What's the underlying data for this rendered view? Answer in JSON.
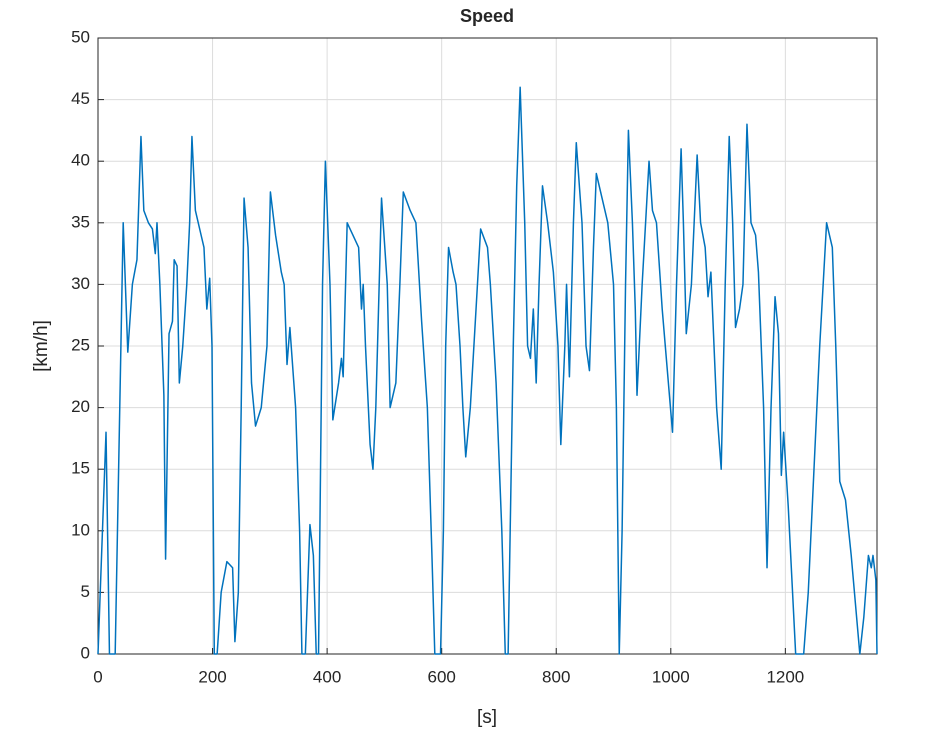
{
  "chart_data": {
    "type": "line",
    "title": "Speed",
    "x_label": "[s]",
    "y_label": "[km/h]",
    "x": [
      0,
      14,
      20,
      30,
      44,
      52,
      60,
      68,
      75,
      80,
      88,
      95,
      100,
      103,
      108,
      115,
      118,
      124,
      130,
      133,
      138,
      142,
      148,
      155,
      160,
      164,
      170,
      180,
      185,
      190,
      195,
      199,
      203,
      208,
      215,
      225,
      235,
      239,
      245,
      250,
      255,
      262,
      268,
      275,
      285,
      295,
      301,
      310,
      320,
      325,
      330,
      335,
      345,
      352,
      356,
      362,
      370,
      376,
      381,
      385,
      392,
      397,
      405,
      410,
      420,
      425,
      428,
      435,
      445,
      455,
      460,
      463,
      467,
      475,
      480,
      485,
      488,
      495,
      505,
      510,
      520,
      527,
      533,
      545,
      555,
      565,
      575,
      583,
      588,
      598,
      603,
      607,
      612,
      620,
      625,
      632,
      637,
      642,
      650,
      660,
      668,
      680,
      685,
      690,
      695,
      705,
      711,
      716,
      725,
      731,
      737,
      745,
      750,
      755,
      760,
      765,
      770,
      776,
      785,
      795,
      803,
      808,
      815,
      818,
      823,
      830,
      835,
      845,
      852,
      858,
      865,
      870,
      880,
      890,
      900,
      905,
      910,
      915,
      921,
      926,
      933,
      938,
      941,
      950,
      962,
      968,
      975,
      985,
      1003,
      1010,
      1018,
      1022,
      1027,
      1036,
      1046,
      1052,
      1060,
      1065,
      1070,
      1080,
      1088,
      1095,
      1102,
      1108,
      1113,
      1120,
      1126,
      1133,
      1140,
      1148,
      1153,
      1162,
      1168,
      1175,
      1182,
      1188,
      1193,
      1197,
      1205,
      1218,
      1232,
      1240,
      1250,
      1260,
      1272,
      1282,
      1288,
      1295,
      1305,
      1315,
      1330,
      1337,
      1345,
      1350,
      1353,
      1358,
      1360
    ],
    "values": [
      0,
      18,
      0,
      0,
      35,
      24.5,
      30,
      32,
      42,
      36,
      35,
      34.5,
      32.5,
      35,
      30,
      21,
      7.7,
      26,
      27,
      32,
      31.5,
      22,
      25,
      30,
      35,
      42,
      36,
      34,
      33,
      28,
      30.5,
      25,
      0,
      0,
      5,
      7.5,
      7,
      1,
      5,
      20,
      37,
      33,
      22,
      18.5,
      20,
      25,
      37.5,
      34,
      31,
      30,
      23.5,
      26.5,
      20,
      10,
      0,
      0,
      10.5,
      8,
      0,
      0,
      30,
      40,
      30,
      19,
      22,
      24,
      22.5,
      35,
      34,
      33,
      28,
      30,
      25,
      17,
      15,
      20,
      25,
      37,
      30,
      20,
      22,
      30,
      37.5,
      36,
      35,
      27,
      20,
      8,
      0,
      0,
      10,
      25,
      33,
      31,
      30,
      25,
      20,
      16,
      20,
      28,
      34.5,
      33,
      30,
      26,
      22,
      10,
      0,
      0,
      25,
      38,
      46,
      35,
      25,
      24,
      28,
      22,
      30,
      38,
      35,
      31,
      25,
      17,
      25,
      30,
      22.5,
      35,
      41.5,
      35,
      25,
      23,
      33,
      39,
      37,
      35,
      30,
      20,
      0,
      10,
      30,
      42.5,
      35,
      28,
      21,
      30,
      40,
      36,
      35,
      28,
      18,
      30,
      41,
      35,
      26,
      30,
      40.5,
      35,
      33,
      29,
      31,
      20,
      15,
      30,
      42,
      35,
      26.5,
      28,
      30,
      43,
      35,
      34,
      31,
      20,
      7,
      20,
      29,
      26,
      14.5,
      18,
      12,
      0,
      0,
      5,
      15,
      25,
      35,
      33,
      25,
      14,
      12.5,
      8,
      0,
      3,
      8,
      7,
      8,
      6,
      0
    ],
    "color": "#0072bd",
    "xlim": [
      0,
      1360
    ],
    "ylim": [
      0,
      50
    ],
    "xticks": [
      0,
      200,
      400,
      600,
      800,
      1000,
      1200
    ],
    "yticks": [
      0,
      5,
      10,
      15,
      20,
      25,
      30,
      35,
      40,
      45,
      50
    ],
    "grid": true
  }
}
